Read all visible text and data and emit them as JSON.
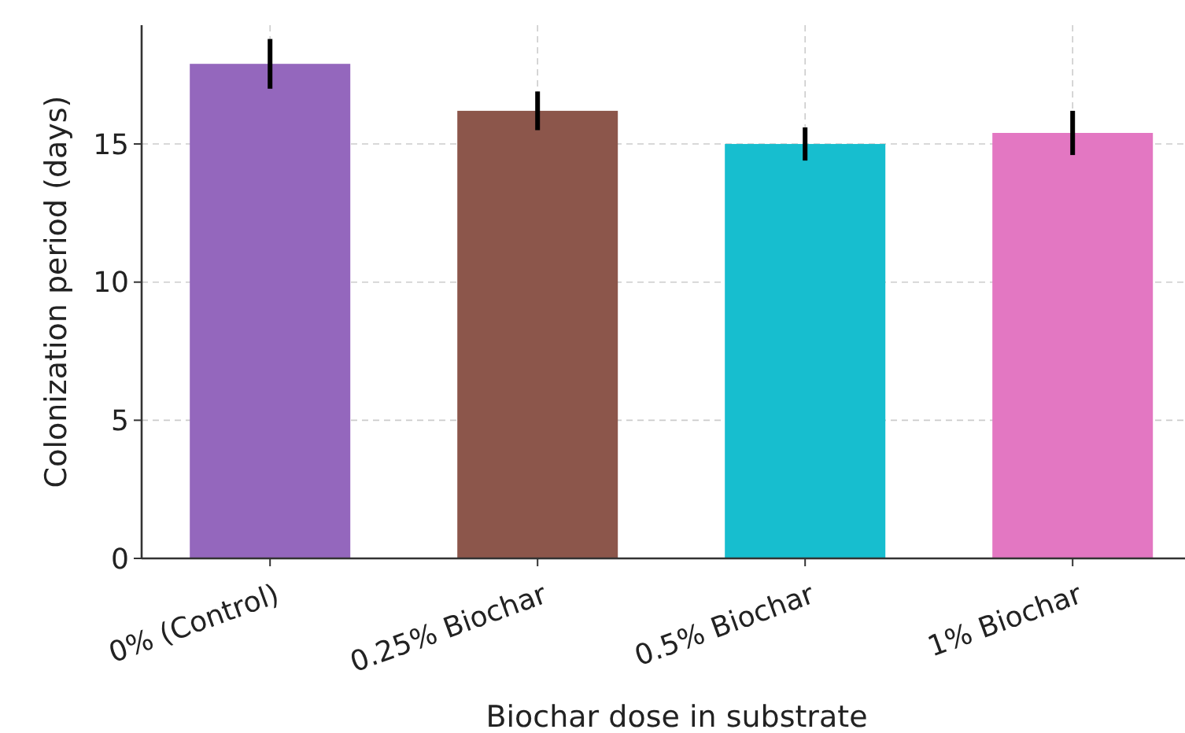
{
  "chart_data": {
    "type": "bar",
    "xlabel": "Biochar dose in substrate",
    "ylabel": "Colonization period (days)",
    "categories": [
      "0% (Control)",
      "0.25% Biochar",
      "0.5% Biochar",
      "1% Biochar"
    ],
    "values": [
      17.9,
      16.2,
      15.0,
      15.4
    ],
    "colors": [
      "#9467bd",
      "#8c564b",
      "#17becf",
      "#e377c2"
    ],
    "errors": [
      0.9,
      0.7,
      0.6,
      0.8
    ],
    "ylim": [
      0,
      19.3
    ],
    "yticks": [
      0,
      5,
      10,
      15
    ],
    "grid": true
  }
}
